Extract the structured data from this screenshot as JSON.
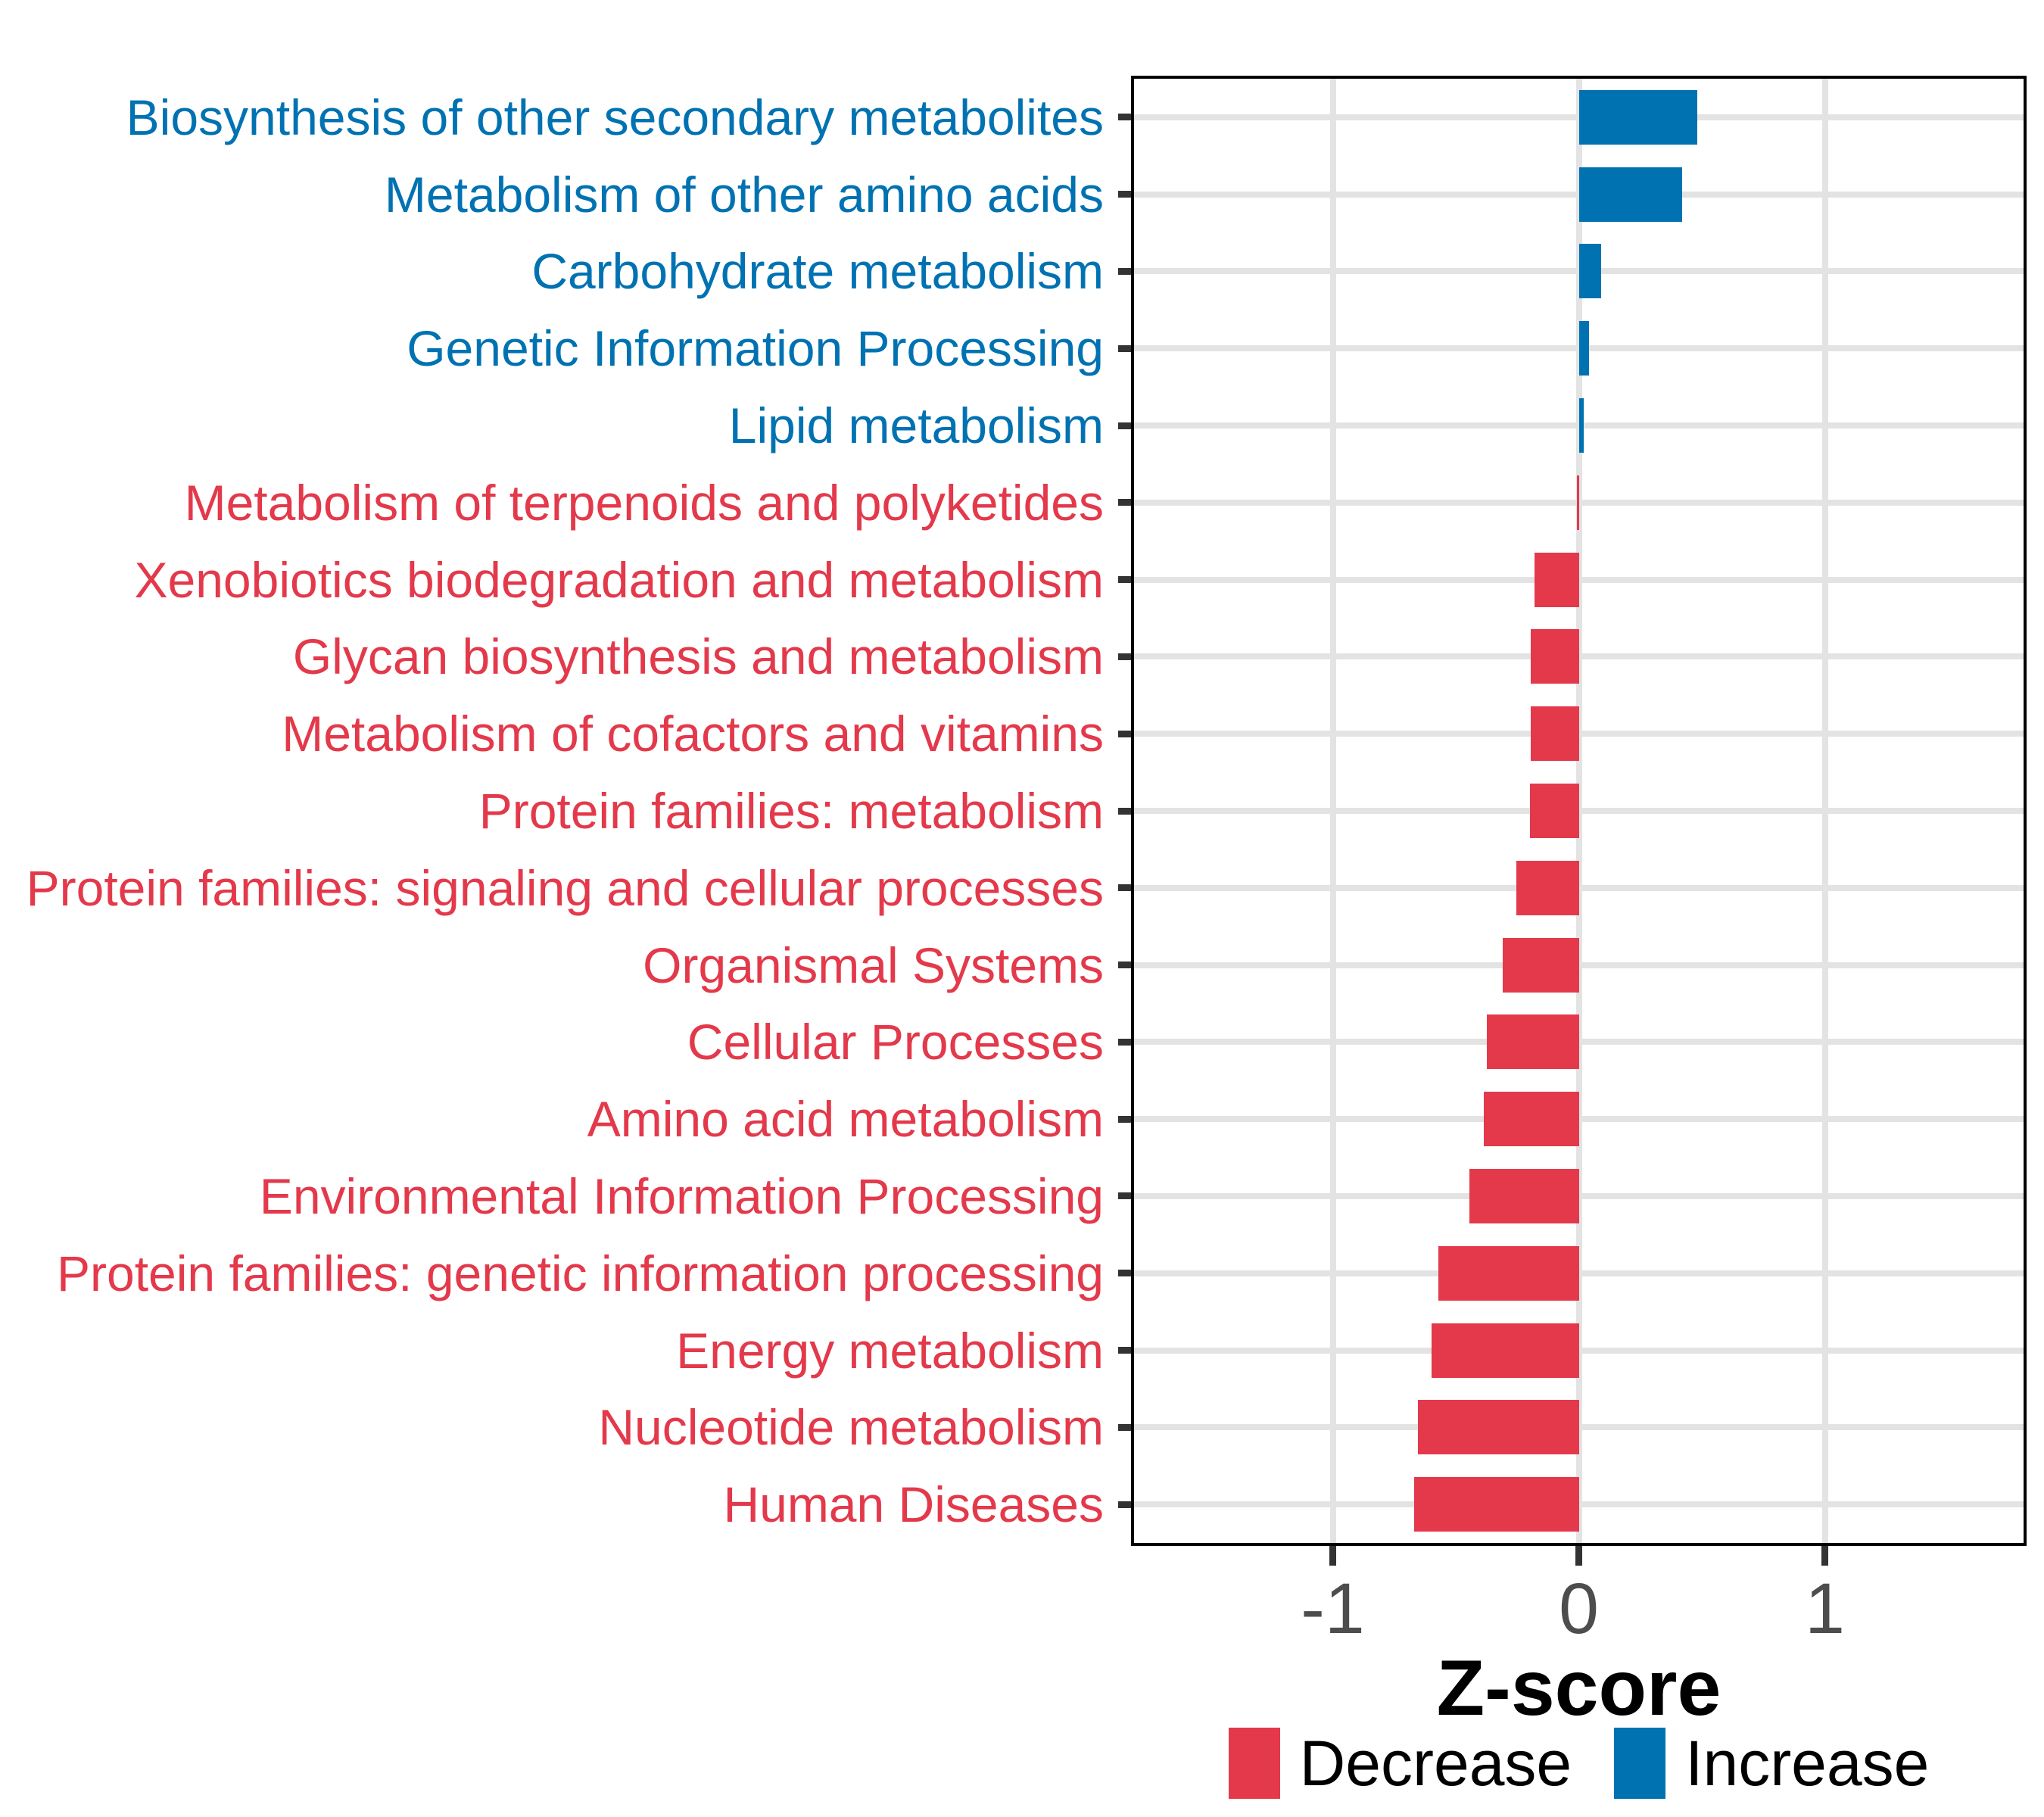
{
  "chart_data": {
    "type": "bar",
    "orientation": "horizontal",
    "xlabel": "Z-score",
    "x_ticks": [
      "-1",
      "0",
      "1"
    ],
    "x_tick_values": [
      -1,
      0,
      1
    ],
    "xlim": [
      -1.82,
      1.82
    ],
    "grid": "horizontal gridline at each category; vertical gridlines at -1, 0, 1",
    "legend_position": "bottom",
    "colors": {
      "decrease": "#e3394b",
      "increase": "#0072b2"
    },
    "categories": [
      {
        "label": "Biosynthesis of other secondary metabolites",
        "value": 0.48,
        "direction": "increase"
      },
      {
        "label": "Metabolism of other amino acids",
        "value": 0.42,
        "direction": "increase"
      },
      {
        "label": "Carbohydrate metabolism",
        "value": 0.09,
        "direction": "increase"
      },
      {
        "label": "Genetic Information Processing",
        "value": 0.04,
        "direction": "increase"
      },
      {
        "label": "Lipid metabolism",
        "value": 0.02,
        "direction": "increase"
      },
      {
        "label": "Metabolism of terpenoids and polyketides",
        "value": -0.005,
        "direction": "decrease"
      },
      {
        "label": "Xenobiotics biodegradation and metabolism",
        "value": -0.18,
        "direction": "decrease"
      },
      {
        "label": "Glycan biosynthesis and metabolism",
        "value": -0.195,
        "direction": "decrease"
      },
      {
        "label": "Metabolism of cofactors and vitamins",
        "value": -0.195,
        "direction": "decrease"
      },
      {
        "label": "Protein families: metabolism",
        "value": -0.2,
        "direction": "decrease"
      },
      {
        "label": "Protein families: signaling and cellular processes",
        "value": -0.255,
        "direction": "decrease"
      },
      {
        "label": "Organismal Systems",
        "value": -0.31,
        "direction": "decrease"
      },
      {
        "label": "Cellular Processes",
        "value": -0.375,
        "direction": "decrease"
      },
      {
        "label": "Amino acid metabolism",
        "value": -0.385,
        "direction": "decrease"
      },
      {
        "label": "Environmental Information Processing",
        "value": -0.445,
        "direction": "decrease"
      },
      {
        "label": "Protein families: genetic information processing",
        "value": -0.57,
        "direction": "decrease"
      },
      {
        "label": "Energy metabolism",
        "value": -0.6,
        "direction": "decrease"
      },
      {
        "label": "Nucleotide metabolism",
        "value": -0.655,
        "direction": "decrease"
      },
      {
        "label": "Human Diseases",
        "value": -0.67,
        "direction": "decrease"
      }
    ]
  },
  "axis": {
    "title": "Z-score"
  },
  "legend": {
    "decrease_label": "Decrease",
    "increase_label": "Increase"
  }
}
